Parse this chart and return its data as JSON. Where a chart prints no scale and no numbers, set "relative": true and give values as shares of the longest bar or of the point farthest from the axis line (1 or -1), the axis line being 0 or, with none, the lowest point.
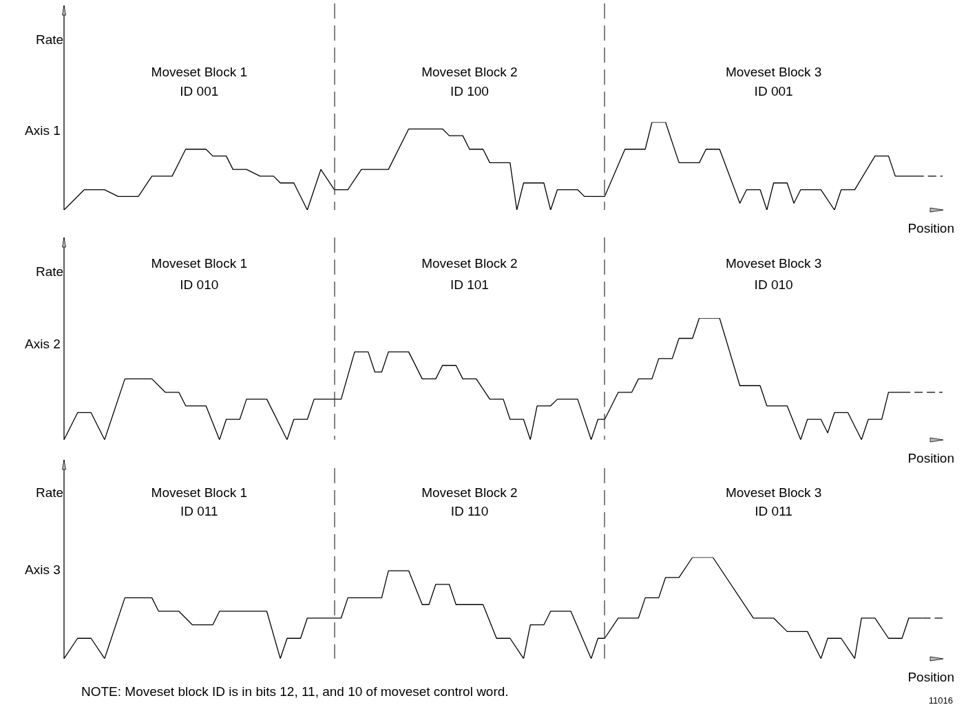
{
  "chart_data": [
    {
      "type": "line",
      "relative": true,
      "title": "Axis 1",
      "ylabel": "Rate",
      "xlabel": "Position",
      "marker": "none",
      "categories": [
        null,
        null,
        null,
        null,
        null,
        null,
        null,
        null,
        null,
        null,
        null,
        null,
        null,
        null,
        null,
        null,
        null,
        null,
        null,
        null,
        null,
        null,
        null,
        null,
        null,
        null,
        null,
        null,
        null,
        null,
        null,
        null,
        null,
        null,
        null,
        null,
        null,
        null,
        null,
        null,
        null,
        null,
        null,
        null,
        null,
        null,
        null,
        null,
        null,
        null,
        null,
        null,
        null,
        null,
        null,
        null,
        null,
        null,
        null,
        null,
        null,
        null,
        null,
        null,
        null,
        null,
        null,
        null,
        null,
        null,
        null,
        null,
        null,
        null,
        null,
        null,
        null,
        null,
        null,
        null,
        null,
        null,
        null,
        null,
        null,
        null,
        null,
        null,
        null,
        null,
        null,
        null,
        null,
        null,
        null,
        null,
        null,
        null,
        null,
        null,
        null,
        null,
        null,
        null,
        null,
        null,
        null,
        null,
        null,
        null,
        null,
        null,
        null,
        null,
        null,
        null,
        null,
        null,
        null,
        null,
        null,
        null,
        null,
        null,
        null,
        null,
        null,
        null,
        null,
        null,
        null
      ],
      "series": [
        {
          "color": "#000000",
          "values": [
            0,
            null,
            null,
            0.231,
            null,
            null,
            0.231,
            null,
            0.154,
            null,
            null,
            0.154,
            null,
            0.385,
            null,
            null,
            0.385,
            null,
            0.692,
            null,
            null,
            0.692,
            0.615,
            null,
            0.615,
            0.462,
            null,
            0.462,
            null,
            0.385,
            null,
            0.385,
            0.308,
            null,
            0.308,
            null,
            0,
            null,
            0.462,
            null,
            0.231,
            null,
            0.231,
            null,
            0.462,
            null,
            null,
            null,
            0.462,
            null,
            null,
            0.923,
            null,
            null,
            null,
            null,
            0.923,
            0.846,
            null,
            0.846,
            0.692,
            null,
            0.692,
            0.538,
            null,
            null,
            0.538,
            0,
            0.308,
            null,
            null,
            0.308,
            0,
            0.231,
            null,
            null,
            0.231,
            0.154,
            null,
            null,
            0.154,
            null,
            null,
            0.692,
            null,
            null,
            0.692,
            1,
            null,
            1,
            null,
            0.538,
            null,
            null,
            0.538,
            0.692,
            null,
            0.692,
            null,
            null,
            0.077,
            0.231,
            null,
            0.231,
            0,
            0.308,
            null,
            0.308,
            0.077,
            0.231,
            null,
            null,
            0.231,
            null,
            0,
            0.231,
            null,
            0.231,
            null,
            null,
            0.615,
            null,
            0.615,
            0.385,
            null,
            null,
            0.385,
            null,
            null,
            null,
            null
          ]
        },
        {
          "color": "#000000",
          "line_style": "dashed",
          "values": [
            null,
            null,
            null,
            null,
            null,
            null,
            null,
            null,
            null,
            null,
            null,
            null,
            null,
            null,
            null,
            null,
            null,
            null,
            null,
            null,
            null,
            null,
            null,
            null,
            null,
            null,
            null,
            null,
            null,
            null,
            null,
            null,
            null,
            null,
            null,
            null,
            null,
            null,
            null,
            null,
            null,
            null,
            null,
            null,
            null,
            null,
            null,
            null,
            null,
            null,
            null,
            null,
            null,
            null,
            null,
            null,
            null,
            null,
            null,
            null,
            null,
            null,
            null,
            null,
            null,
            null,
            null,
            null,
            null,
            null,
            null,
            null,
            null,
            null,
            null,
            null,
            null,
            null,
            null,
            null,
            null,
            null,
            null,
            null,
            null,
            null,
            null,
            null,
            null,
            null,
            null,
            null,
            null,
            null,
            null,
            null,
            null,
            null,
            null,
            null,
            null,
            null,
            null,
            null,
            null,
            null,
            null,
            null,
            null,
            null,
            null,
            null,
            null,
            null,
            null,
            null,
            null,
            null,
            null,
            null,
            null,
            null,
            null,
            null,
            null,
            null,
            0.385,
            null,
            null,
            null,
            0.385
          ]
        }
      ],
      "annotations": [
        "Moveset Block 1",
        "ID 001",
        "Moveset Block 2",
        "ID 100",
        "Moveset Block 3",
        "ID 001"
      ]
    },
    {
      "type": "line",
      "relative": true,
      "title": "Axis 2",
      "ylabel": "Rate",
      "xlabel": "Position",
      "marker": "none",
      "categories": [
        null,
        null,
        null,
        null,
        null,
        null,
        null,
        null,
        null,
        null,
        null,
        null,
        null,
        null,
        null,
        null,
        null,
        null,
        null,
        null,
        null,
        null,
        null,
        null,
        null,
        null,
        null,
        null,
        null,
        null,
        null,
        null,
        null,
        null,
        null,
        null,
        null,
        null,
        null,
        null,
        null,
        null,
        null,
        null,
        null,
        null,
        null,
        null,
        null,
        null,
        null,
        null,
        null,
        null,
        null,
        null,
        null,
        null,
        null,
        null,
        null,
        null,
        null,
        null,
        null,
        null,
        null,
        null,
        null,
        null,
        null,
        null,
        null,
        null,
        null,
        null,
        null,
        null,
        null,
        null,
        null,
        null,
        null,
        null,
        null,
        null,
        null,
        null,
        null,
        null,
        null,
        null,
        null,
        null,
        null,
        null,
        null,
        null,
        null,
        null,
        null,
        null,
        null,
        null,
        null,
        null,
        null,
        null,
        null,
        null,
        null,
        null,
        null,
        null,
        null,
        null,
        null,
        null,
        null,
        null,
        null,
        null,
        null,
        null,
        null,
        null,
        null,
        null,
        null,
        null,
        null
      ],
      "series": [
        {
          "color": "#000000",
          "values": [
            0,
            null,
            0.222,
            null,
            0.222,
            null,
            0,
            null,
            null,
            0.5,
            null,
            null,
            null,
            0.5,
            null,
            0.389,
            null,
            0.389,
            0.278,
            null,
            null,
            0.278,
            null,
            0,
            0.167,
            null,
            0.167,
            0.333,
            null,
            null,
            0.333,
            null,
            null,
            0,
            0.167,
            null,
            0.167,
            0.333,
            null,
            null,
            null,
            0.333,
            null,
            0.722,
            null,
            0.722,
            0.556,
            0.556,
            0.722,
            null,
            null,
            0.722,
            null,
            0.5,
            null,
            0.5,
            0.611,
            null,
            0.611,
            0.5,
            null,
            0.5,
            null,
            0.333,
            null,
            0.333,
            0.167,
            null,
            0.167,
            0,
            0.278,
            null,
            0.278,
            0.333,
            null,
            null,
            0.333,
            null,
            0,
            0.167,
            0.167,
            null,
            0.389,
            null,
            0.389,
            0.5,
            null,
            0.5,
            0.667,
            null,
            0.667,
            0.833,
            null,
            0.833,
            1,
            null,
            null,
            1,
            null,
            null,
            0.444,
            null,
            null,
            0.444,
            0.278,
            null,
            null,
            0.278,
            null,
            0,
            0.167,
            null,
            0.167,
            0.056,
            0.222,
            null,
            0.222,
            null,
            0,
            0.167,
            null,
            0.167,
            0.389,
            null,
            0.389,
            null,
            null,
            null,
            null,
            null,
            null
          ]
        },
        {
          "color": "#000000",
          "line_style": "dashed",
          "values": [
            null,
            null,
            null,
            null,
            null,
            null,
            null,
            null,
            null,
            null,
            null,
            null,
            null,
            null,
            null,
            null,
            null,
            null,
            null,
            null,
            null,
            null,
            null,
            null,
            null,
            null,
            null,
            null,
            null,
            null,
            null,
            null,
            null,
            null,
            null,
            null,
            null,
            null,
            null,
            null,
            null,
            null,
            null,
            null,
            null,
            null,
            null,
            null,
            null,
            null,
            null,
            null,
            null,
            null,
            null,
            null,
            null,
            null,
            null,
            null,
            null,
            null,
            null,
            null,
            null,
            null,
            null,
            null,
            null,
            null,
            null,
            null,
            null,
            null,
            null,
            null,
            null,
            null,
            null,
            null,
            null,
            null,
            null,
            null,
            null,
            null,
            null,
            null,
            null,
            null,
            null,
            null,
            null,
            null,
            null,
            null,
            null,
            null,
            null,
            null,
            null,
            null,
            null,
            null,
            null,
            null,
            null,
            null,
            null,
            null,
            null,
            null,
            null,
            null,
            null,
            null,
            null,
            null,
            null,
            null,
            null,
            null,
            null,
            null,
            0.389,
            null,
            null,
            null,
            null,
            null,
            0.389
          ]
        }
      ],
      "annotations": [
        "Moveset Block 1",
        "ID 010",
        "Moveset Block 2",
        "ID 101",
        "Moveset Block 3",
        "ID 010"
      ]
    },
    {
      "type": "line",
      "relative": true,
      "title": "Axis 3",
      "ylabel": "Rate",
      "xlabel": "Position",
      "marker": "none",
      "categories": [
        null,
        null,
        null,
        null,
        null,
        null,
        null,
        null,
        null,
        null,
        null,
        null,
        null,
        null,
        null,
        null,
        null,
        null,
        null,
        null,
        null,
        null,
        null,
        null,
        null,
        null,
        null,
        null,
        null,
        null,
        null,
        null,
        null,
        null,
        null,
        null,
        null,
        null,
        null,
        null,
        null,
        null,
        null,
        null,
        null,
        null,
        null,
        null,
        null,
        null,
        null,
        null,
        null,
        null,
        null,
        null,
        null,
        null,
        null,
        null,
        null,
        null,
        null,
        null,
        null,
        null,
        null,
        null,
        null,
        null,
        null,
        null,
        null,
        null,
        null,
        null,
        null,
        null,
        null,
        null,
        null,
        null,
        null,
        null,
        null,
        null,
        null,
        null,
        null,
        null,
        null,
        null,
        null,
        null,
        null,
        null,
        null,
        null,
        null,
        null,
        null,
        null,
        null,
        null,
        null,
        null,
        null,
        null,
        null,
        null,
        null,
        null,
        null,
        null,
        null,
        null,
        null,
        null,
        null,
        null,
        null,
        null,
        null,
        null,
        null,
        null,
        null,
        null,
        null,
        null,
        null
      ],
      "series": [
        {
          "color": "#000000",
          "values": [
            0,
            null,
            0.2,
            null,
            0.2,
            null,
            0,
            null,
            null,
            0.6,
            null,
            null,
            null,
            0.6,
            0.467,
            null,
            null,
            0.467,
            null,
            0.333,
            null,
            null,
            0.333,
            0.467,
            null,
            null,
            null,
            null,
            null,
            null,
            0.467,
            null,
            0,
            0.2,
            null,
            0.2,
            0.4,
            null,
            null,
            null,
            null,
            0.4,
            0.6,
            null,
            null,
            null,
            null,
            0.6,
            0.867,
            null,
            null,
            0.867,
            null,
            0.533,
            0.533,
            0.733,
            null,
            0.733,
            0.533,
            null,
            null,
            null,
            0.533,
            null,
            0.2,
            null,
            0.2,
            null,
            0,
            0.333,
            null,
            0.333,
            0.467,
            null,
            null,
            0.467,
            null,
            null,
            0,
            0.2,
            0.2,
            null,
            0.4,
            null,
            null,
            0.4,
            0.6,
            null,
            0.6,
            0.8,
            null,
            0.8,
            null,
            1,
            null,
            null,
            1,
            null,
            null,
            null,
            null,
            null,
            0.4,
            null,
            null,
            0.4,
            null,
            0.267,
            null,
            null,
            0.267,
            null,
            0,
            0.2,
            null,
            0.2,
            null,
            0,
            0.4,
            null,
            0.4,
            null,
            0.2,
            null,
            0.2,
            0.4,
            null,
            0.4,
            null,
            null,
            null
          ]
        },
        {
          "color": "#000000",
          "line_style": "dashed",
          "values": [
            null,
            null,
            null,
            null,
            null,
            null,
            null,
            null,
            null,
            null,
            null,
            null,
            null,
            null,
            null,
            null,
            null,
            null,
            null,
            null,
            null,
            null,
            null,
            null,
            null,
            null,
            null,
            null,
            null,
            null,
            null,
            null,
            null,
            null,
            null,
            null,
            null,
            null,
            null,
            null,
            null,
            null,
            null,
            null,
            null,
            null,
            null,
            null,
            null,
            null,
            null,
            null,
            null,
            null,
            null,
            null,
            null,
            null,
            null,
            null,
            null,
            null,
            null,
            null,
            null,
            null,
            null,
            null,
            null,
            null,
            null,
            null,
            null,
            null,
            null,
            null,
            null,
            null,
            null,
            null,
            null,
            null,
            null,
            null,
            null,
            null,
            null,
            null,
            null,
            null,
            null,
            null,
            null,
            null,
            null,
            null,
            null,
            null,
            null,
            null,
            null,
            null,
            null,
            null,
            null,
            null,
            null,
            null,
            null,
            null,
            null,
            null,
            null,
            null,
            null,
            null,
            null,
            null,
            null,
            null,
            null,
            null,
            null,
            null,
            null,
            null,
            null,
            0.4,
            null,
            null,
            0.4
          ]
        }
      ],
      "annotations": [
        "Moveset Block 1",
        "ID 011",
        "Moveset Block 2",
        "ID 110",
        "Moveset Block 3",
        "ID 011",
        "NOTE: Moveset block ID is in bits 12, 11, and 10 of moveset control word.",
        "11016"
      ]
    }
  ]
}
